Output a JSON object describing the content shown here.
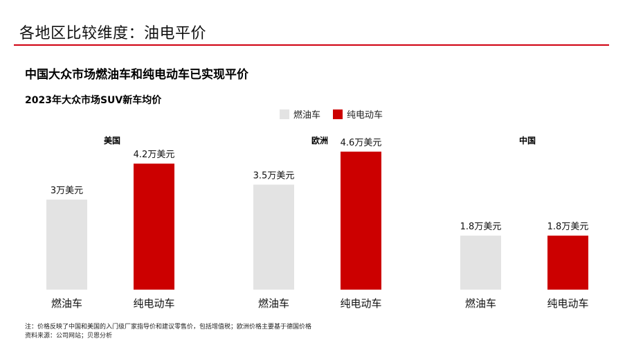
{
  "header": {
    "title": "各地区比较维度：油电平价"
  },
  "headline": "中国大众市场燃油车和纯电动车已实现平价",
  "subtitle": "2023年大众市场SUV新车均价",
  "legend": [
    {
      "label": "燃油车",
      "color": "#e3e3e3"
    },
    {
      "label": "纯电动车",
      "color": "#cc0000"
    }
  ],
  "colors": {
    "ice": "#e3e3e3",
    "ev": "#cc0000",
    "accent": "#d0000f"
  },
  "chart_data": [
    {
      "type": "bar",
      "title": "美国",
      "categories": [
        "燃油车",
        "纯电动车"
      ],
      "values": [
        3,
        4.2
      ],
      "data_labels": [
        "3万美元",
        "4.2万美元"
      ],
      "ylim": [
        0,
        5
      ]
    },
    {
      "type": "bar",
      "title": "欧洲",
      "categories": [
        "燃油车",
        "纯电动车"
      ],
      "values": [
        3.5,
        4.6
      ],
      "data_labels": [
        "3.5万美元",
        "4.6万美元"
      ],
      "ylim": [
        0,
        5
      ]
    },
    {
      "type": "bar",
      "title": "中国",
      "categories": [
        "燃油车",
        "纯电动车"
      ],
      "values": [
        1.8,
        1.8
      ],
      "data_labels": [
        "1.8万美元",
        "1.8万美元"
      ],
      "ylim": [
        0,
        5
      ]
    }
  ],
  "notes": {
    "note": "注：价格反映了中国和美国的入门级厂家指导价和建议零售价，包括增值税；欧洲价格主要基于德国价格",
    "source": "资料来源：公司网站；贝恩分析"
  }
}
